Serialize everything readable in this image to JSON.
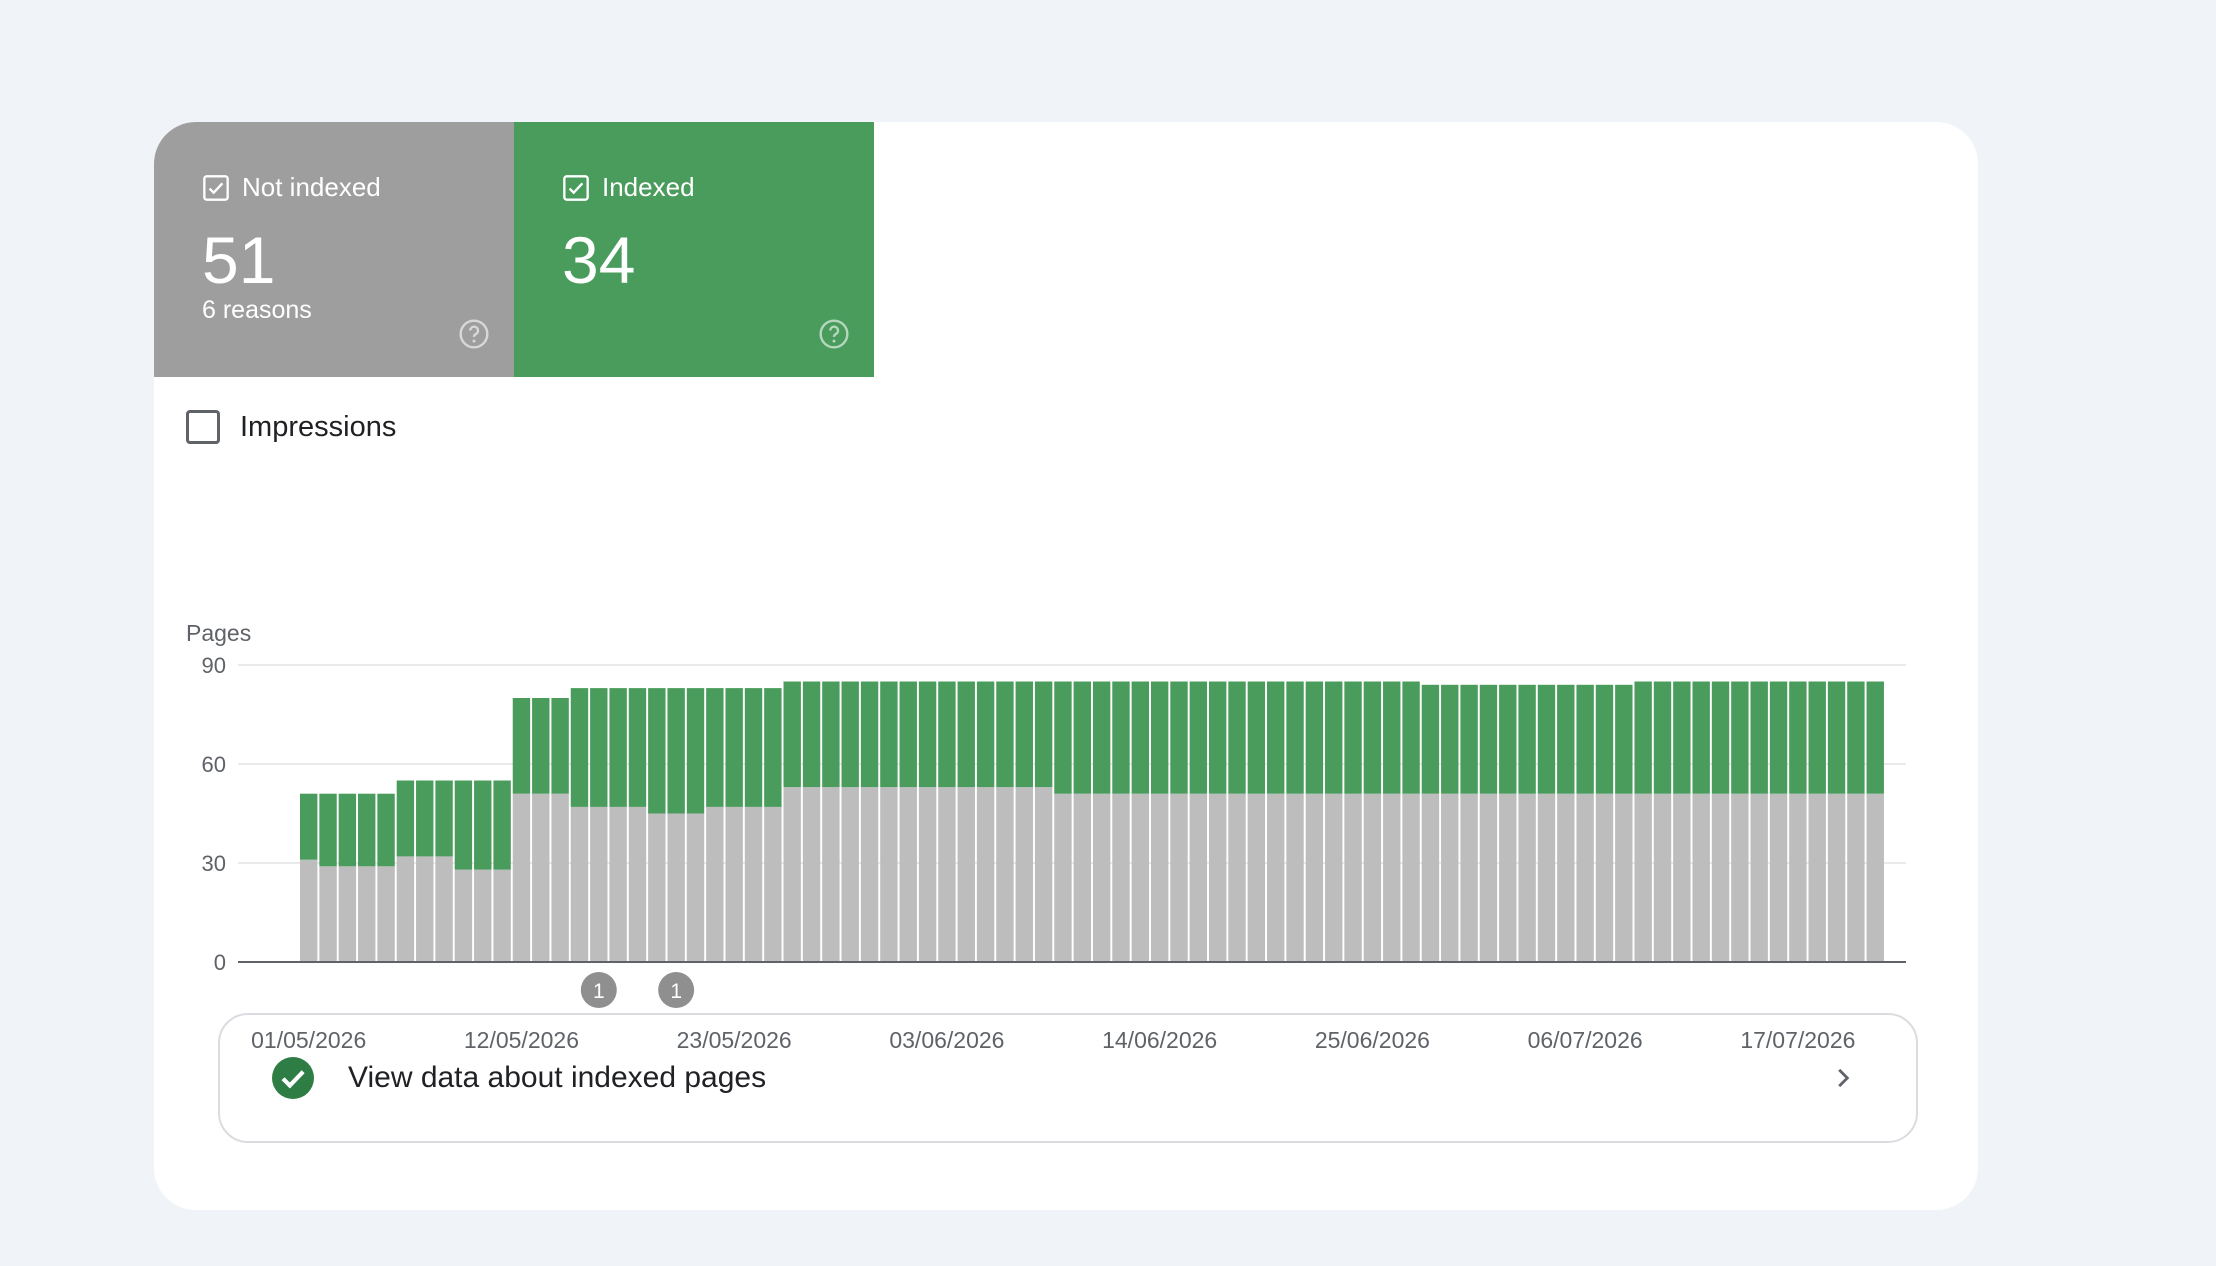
{
  "summary": {
    "not_indexed": {
      "label": "Not indexed",
      "value": "51",
      "subtitle": "6 reasons",
      "color": "#9e9e9e"
    },
    "indexed": {
      "label": "Indexed",
      "value": "34",
      "color": "#4a9c5d"
    }
  },
  "impressions": {
    "label": "Impressions",
    "checked": false
  },
  "chart_data": {
    "type": "bar",
    "stacked": true,
    "ylabel": "Pages",
    "ylim": [
      0,
      90
    ],
    "yticks": [
      0,
      30,
      60,
      90
    ],
    "x_start": "01/05/2026",
    "x_tick_labels": [
      "01/05/2026",
      "12/05/2026",
      "23/05/2026",
      "03/06/2026",
      "14/06/2026",
      "25/06/2026",
      "06/07/2026",
      "17/07/2026"
    ],
    "grid": true,
    "series": [
      {
        "name": "Not indexed",
        "color": "#bdbdbd",
        "values": [
          31,
          29,
          29,
          29,
          29,
          32,
          32,
          32,
          28,
          28,
          28,
          51,
          51,
          51,
          47,
          47,
          47,
          47,
          45,
          45,
          45,
          47,
          47,
          47,
          47,
          53,
          53,
          53,
          53,
          53,
          53,
          53,
          53,
          53,
          53,
          53,
          53,
          53,
          53,
          51,
          51,
          51,
          51,
          51,
          51,
          51,
          51,
          51,
          51,
          51,
          51,
          51,
          51,
          51,
          51,
          51,
          51,
          51,
          51,
          51,
          51,
          51,
          51,
          51,
          51,
          51,
          51,
          51,
          51,
          51,
          51,
          51,
          51,
          51,
          51,
          51,
          51,
          51,
          51,
          51,
          51,
          51
        ]
      },
      {
        "name": "Indexed",
        "color": "#4a9c5d",
        "values": [
          20,
          22,
          22,
          22,
          22,
          23,
          23,
          23,
          27,
          27,
          27,
          29,
          29,
          29,
          36,
          36,
          36,
          36,
          38,
          38,
          38,
          36,
          36,
          36,
          36,
          32,
          32,
          32,
          32,
          32,
          32,
          32,
          32,
          32,
          32,
          32,
          32,
          32,
          32,
          34,
          34,
          34,
          34,
          34,
          34,
          34,
          34,
          34,
          34,
          34,
          34,
          34,
          34,
          34,
          34,
          34,
          34,
          34,
          33,
          33,
          33,
          33,
          33,
          33,
          33,
          33,
          33,
          33,
          33,
          34,
          34,
          34,
          34,
          34,
          34,
          34,
          34,
          34,
          34,
          34,
          34,
          34
        ]
      }
    ],
    "annotations": [
      {
        "date": "16/05/2026",
        "label": "1"
      },
      {
        "date": "20/05/2026",
        "label": "1"
      }
    ]
  },
  "link_row": {
    "label": "View data about indexed pages",
    "icon": "check-circle-icon",
    "chevron": "chevron-right-icon"
  }
}
